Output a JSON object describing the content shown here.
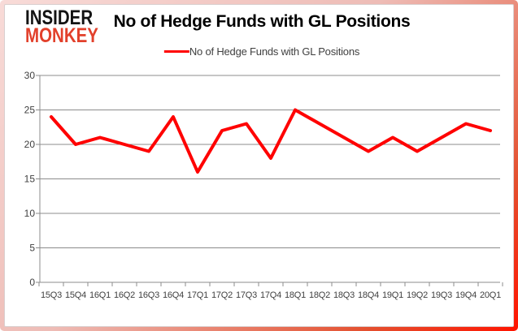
{
  "logo": {
    "line1": "INSIDER",
    "line2": "MONKEY",
    "color_black": "#131313",
    "color_red": "#e2402b"
  },
  "header": {
    "title": "No of Hedge Funds with GL Positions"
  },
  "legend": {
    "label": "No of Hedge Funds with GL Positions",
    "line_color": "#ff0000"
  },
  "chart_data": {
    "type": "line",
    "title": "No of Hedge Funds with GL Positions",
    "categories": [
      "15Q3",
      "15Q4",
      "16Q1",
      "16Q2",
      "16Q3",
      "16Q4",
      "17Q1",
      "17Q2",
      "17Q3",
      "17Q4",
      "18Q1",
      "18Q2",
      "18Q3",
      "18Q4",
      "19Q1",
      "19Q2",
      "19Q3",
      "19Q4",
      "20Q1"
    ],
    "series": [
      {
        "name": "No of Hedge Funds with GL Positions",
        "color": "#ff0000",
        "values": [
          24,
          20,
          21,
          20,
          19,
          24,
          16,
          22,
          23,
          18,
          25,
          23,
          21,
          19,
          21,
          19,
          21,
          23,
          22
        ]
      }
    ],
    "ylim": [
      0,
      30
    ],
    "yticks": [
      0,
      5,
      10,
      15,
      20,
      25,
      30
    ],
    "grid": true,
    "legend_position": "top",
    "gridline_color": "#8c8c8c",
    "axis_label_color": "#3f3f3f"
  }
}
